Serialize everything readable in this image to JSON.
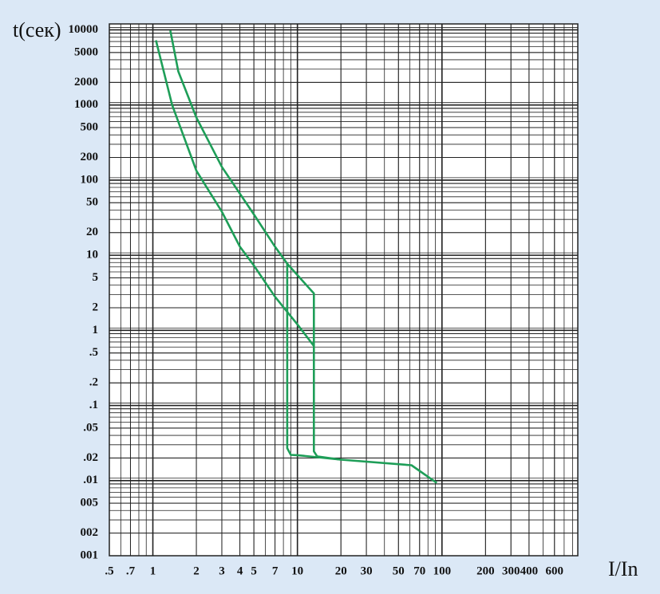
{
  "chart_data": {
    "type": "line",
    "x_label": "I/In",
    "y_label": "t(сек)",
    "xscale": "log",
    "yscale": "log",
    "grid": true,
    "minor_grid": true,
    "xlim": [
      0.5,
      870
    ],
    "ylim": [
      0.001,
      12000
    ],
    "xticks": [
      {
        "value": 0.5,
        "label": ".5"
      },
      {
        "value": 0.7,
        "label": ".7"
      },
      1,
      2,
      3,
      4,
      5,
      7,
      10,
      20,
      30,
      50,
      70,
      100,
      200,
      300,
      400,
      600
    ],
    "yticks": [
      10000,
      5000,
      2000,
      1000,
      500,
      200,
      100,
      50,
      20,
      10,
      5,
      2,
      1,
      {
        "value": 0.5,
        "label": ".5"
      },
      {
        "value": 0.2,
        "label": ".2"
      },
      {
        "value": 0.1,
        "label": ".1"
      },
      {
        "value": 0.05,
        "label": ".05"
      },
      {
        "value": 0.02,
        "label": ".02"
      },
      {
        "value": 0.01,
        "label": ".01"
      },
      {
        "value": 0.005,
        "label": "005"
      },
      {
        "value": 0.002,
        "label": "002"
      },
      {
        "value": 0.001,
        "label": "001"
      }
    ],
    "series": [
      {
        "color": "#1e9e58",
        "x": [
          1.32,
          1.5,
          2,
          3,
          5,
          7,
          8.5,
          13,
          13,
          13.7,
          20,
          61.5,
          92
        ],
        "values": [
          9800,
          2800,
          680,
          150,
          35,
          13,
          7.7,
          3.1,
          0.0245,
          0.021,
          0.019,
          0.016,
          0.0093
        ]
      },
      {
        "color": "#1e9e58",
        "x": [
          1.05,
          1.36,
          2,
          3,
          4,
          5,
          7,
          10,
          13
        ],
        "values": [
          7250,
          1000,
          133,
          38,
          13,
          7.3,
          2.8,
          1.2,
          0.62
        ]
      },
      {
        "color": "#1e9e58",
        "x": [
          8.5,
          8.5,
          9,
          10,
          20
        ],
        "values": [
          7.7,
          0.027,
          0.022,
          0.0218,
          0.019
        ]
      }
    ]
  }
}
